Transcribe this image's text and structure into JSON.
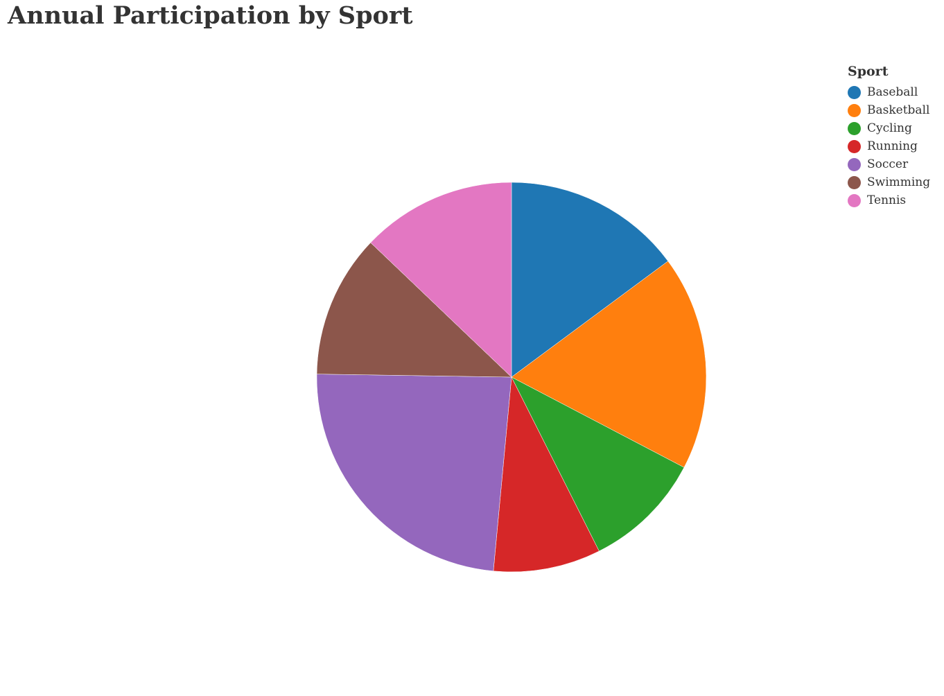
{
  "chart_data": {
    "type": "pie",
    "title": "Annual Participation by Sport",
    "legend_title": "Sport",
    "legend_position": "top-right",
    "categories": [
      "Baseball",
      "Basketball",
      "Cycling",
      "Running",
      "Soccer",
      "Swimming",
      "Tennis"
    ],
    "values": [
      15,
      18,
      10,
      9,
      24,
      12,
      13
    ],
    "colors": [
      "#1f77b4",
      "#ff7f0e",
      "#2ca02c",
      "#d62728",
      "#9467bd",
      "#8c564b",
      "#e377c2"
    ]
  }
}
